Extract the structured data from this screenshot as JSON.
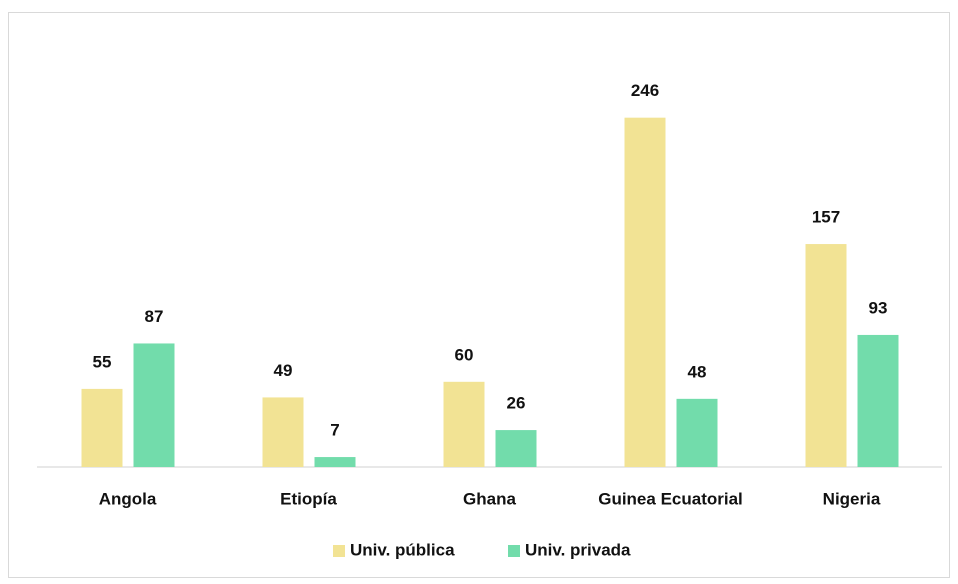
{
  "chart_data": {
    "type": "bar",
    "categories": [
      "Angola",
      "Etiopía",
      "Ghana",
      "Guinea Ecuatorial",
      "Nigeria"
    ],
    "series": [
      {
        "name": "Univ. pública",
        "color": "#f2e394",
        "values": [
          55,
          49,
          60,
          246,
          157
        ]
      },
      {
        "name": "Univ. privada",
        "color": "#72dcab",
        "values": [
          87,
          7,
          26,
          48,
          93
        ]
      }
    ],
    "ylim": [
      0,
      300
    ],
    "legend": "bottom"
  }
}
